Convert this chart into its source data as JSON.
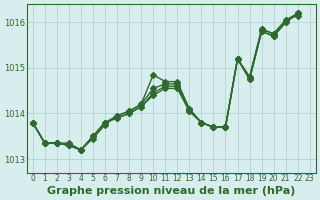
{
  "title": "Graphe pression niveau de la mer (hPa)",
  "background_color": "#d8eeee",
  "line_color": "#2d6a2d",
  "grid_color": "#aacccc",
  "xlim": [
    0,
    23
  ],
  "ylim": [
    1012.7,
    1016.4
  ],
  "xticks": [
    0,
    1,
    2,
    3,
    4,
    5,
    6,
    7,
    8,
    9,
    10,
    11,
    12,
    13,
    14,
    15,
    16,
    17,
    18,
    19,
    20,
    21,
    22,
    23
  ],
  "yticks": [
    1013,
    1014,
    1015,
    1016
  ],
  "series": [
    [
      1013.8,
      1013.35,
      1013.35,
      1013.35,
      1013.2,
      1013.45,
      1013.75,
      1013.95,
      1014.05,
      1014.2,
      1014.85,
      1014.7,
      1014.7,
      1014.1,
      1013.8,
      1013.7,
      1013.7,
      1015.2,
      1014.8,
      1015.85,
      1015.75,
      1016.05,
      1016.15
    ],
    [
      1013.8,
      1013.35,
      1013.35,
      1013.3,
      1013.2,
      1013.5,
      1013.8,
      1013.95,
      1014.05,
      1014.2,
      1014.55,
      1014.65,
      1014.65,
      1014.1,
      1013.8,
      1013.7,
      1013.7,
      1015.2,
      1014.8,
      1015.85,
      1015.75,
      1016.05,
      1016.2
    ],
    [
      1013.8,
      1013.35,
      1013.35,
      1013.3,
      1013.2,
      1013.5,
      1013.8,
      1013.9,
      1014.0,
      1014.15,
      1014.45,
      1014.6,
      1014.6,
      1014.05,
      1013.8,
      1013.7,
      1013.7,
      1015.2,
      1014.75,
      1015.8,
      1015.7,
      1016.0,
      1016.2
    ],
    [
      1013.8,
      1013.35,
      1013.35,
      1013.3,
      1013.2,
      1013.5,
      1013.8,
      1013.9,
      1014.0,
      1014.15,
      1014.4,
      1014.55,
      1014.55,
      1014.05,
      1013.8,
      1013.7,
      1013.7,
      1015.2,
      1014.75,
      1015.8,
      1015.7,
      1016.0,
      1016.2
    ]
  ],
  "marker": "D",
  "marker_size": 3,
  "line_width": 1.0,
  "title_fontsize": 8,
  "tick_fontsize": 5.5,
  "tick_color": "#2d6a2d",
  "axis_label_color": "#2d6a2d"
}
